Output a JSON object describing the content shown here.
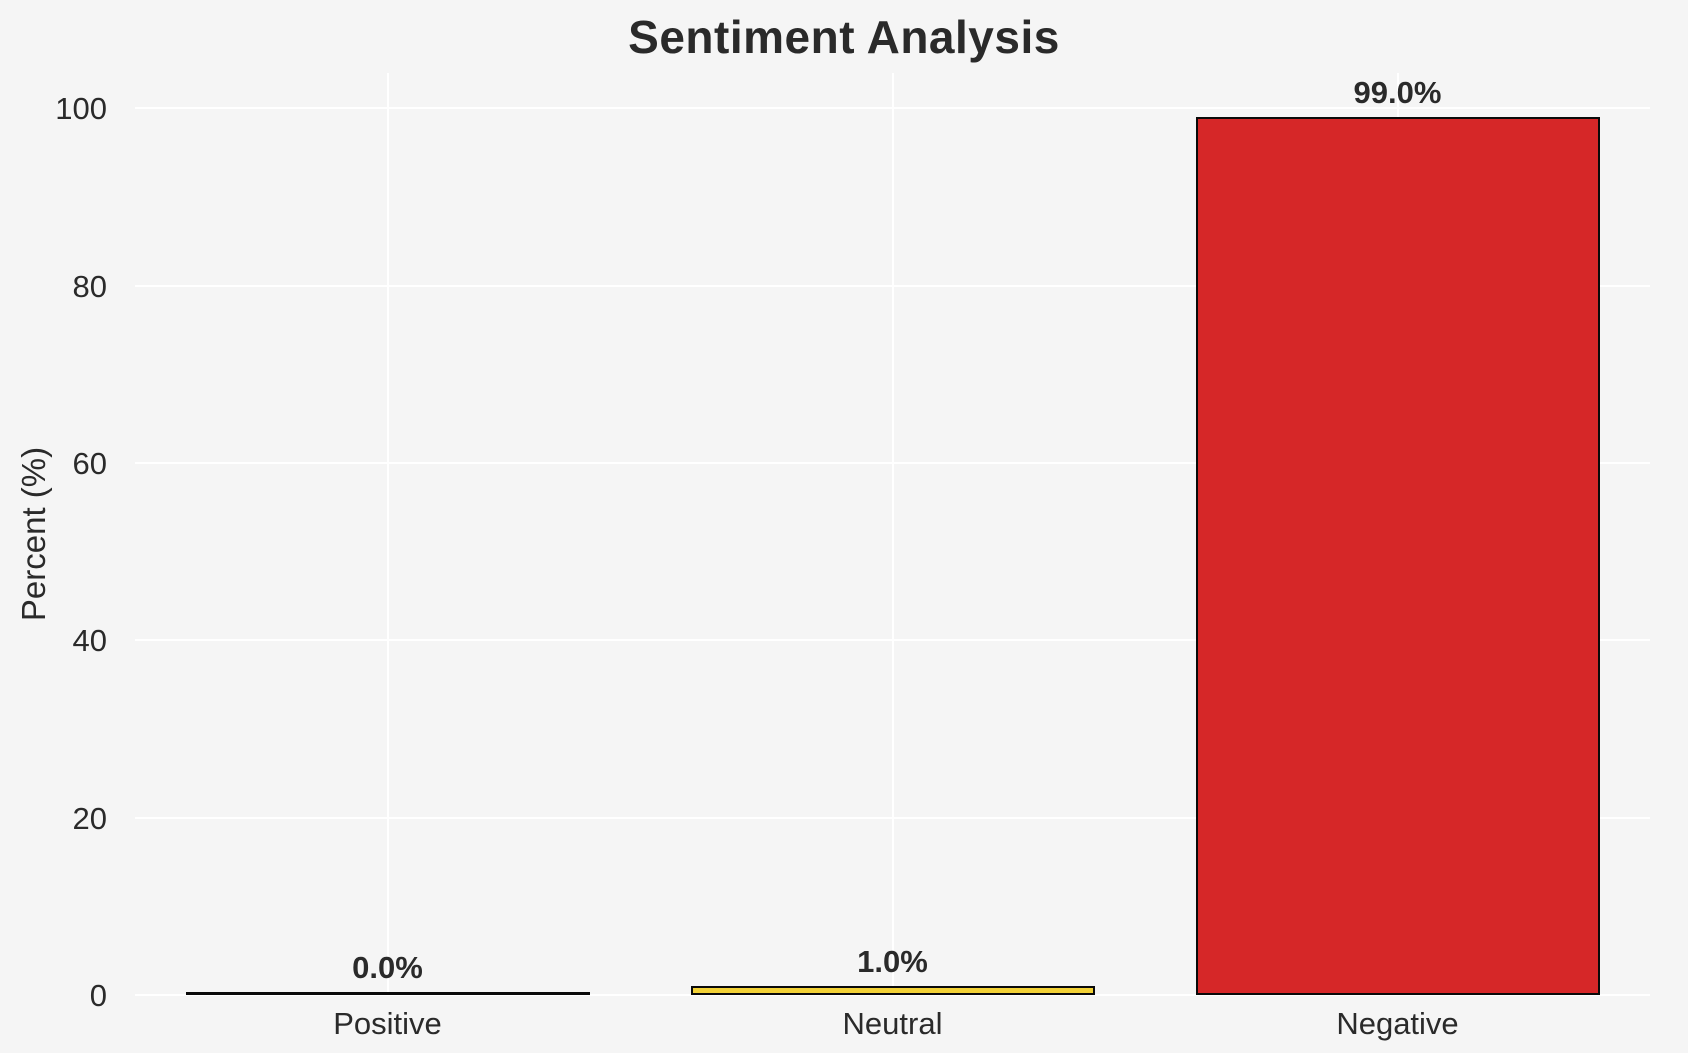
{
  "chart_data": {
    "type": "bar",
    "title": "Sentiment Analysis",
    "xlabel": "",
    "ylabel": "Percent (%)",
    "categories": [
      "Positive",
      "Neutral",
      "Negative"
    ],
    "values": [
      0.0,
      1.0,
      99.0
    ],
    "value_labels": [
      "0.0%",
      "1.0%",
      "99.0%"
    ],
    "bar_colors": [
      "#f5f5f5",
      "#f2d136",
      "#d62728"
    ],
    "bar_edge_color": "#0a0a0a",
    "yticks": [
      0,
      20,
      40,
      60,
      80,
      100
    ],
    "ytick_labels": [
      "0",
      "20",
      "40",
      "60",
      "80",
      "100"
    ],
    "ylim": [
      0,
      104
    ],
    "grid": true,
    "gridline_color": "#ffffff",
    "background_color": "#f5f5f5",
    "text_color": "#2a2a2a",
    "legend": null
  }
}
